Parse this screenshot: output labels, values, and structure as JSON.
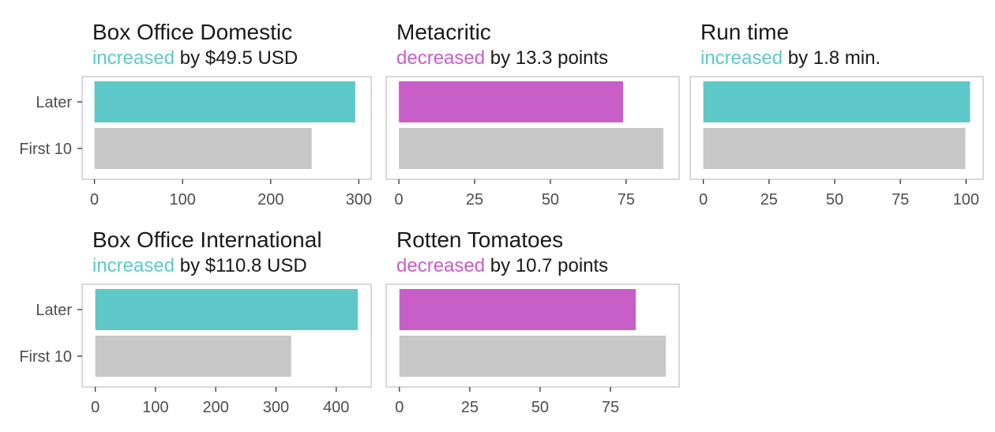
{
  "colors": {
    "increase": "#5EC8C8",
    "decrease": "#C85EC8",
    "baseline": "#C7C7C7",
    "panel_border": "#CCCCCC",
    "text_dark": "#1A1A1A",
    "axis_text": "#4D4D4D"
  },
  "chart_data": [
    {
      "type": "bar",
      "orientation": "horizontal",
      "title": "Box Office Domestic",
      "subtitle_highlight": "increased",
      "subtitle_rest": " by $49.5 USD",
      "direction": "increase",
      "categories": [
        "Later",
        "First 10"
      ],
      "values": [
        296,
        246.5
      ],
      "xlim": [
        -14,
        314
      ],
      "xticks": [
        0,
        100,
        200,
        300
      ],
      "xticklabels": [
        "0",
        "100",
        "200",
        "300"
      ],
      "xlabel": "",
      "ylabel": "",
      "grid": false
    },
    {
      "type": "bar",
      "orientation": "horizontal",
      "title": "Metacritic",
      "subtitle_highlight": "decreased",
      "subtitle_rest": " by 13.3 points",
      "direction": "decrease",
      "categories": [
        "Later",
        "First 10"
      ],
      "values": [
        74,
        87.3
      ],
      "xlim": [
        -4.2,
        92.5
      ],
      "xticks": [
        0,
        25,
        50,
        75
      ],
      "xticklabels": [
        "0",
        "25",
        "50",
        "75"
      ],
      "xlabel": "",
      "ylabel": "",
      "grid": false
    },
    {
      "type": "bar",
      "orientation": "horizontal",
      "title": "Run time",
      "subtitle_highlight": "increased",
      "subtitle_rest": " by 1.8 min.",
      "direction": "increase",
      "categories": [
        "Later",
        "First 10"
      ],
      "values": [
        101.5,
        99.7
      ],
      "xlim": [
        -5,
        106.5
      ],
      "xticks": [
        0,
        25,
        50,
        75,
        100
      ],
      "xticklabels": [
        "0",
        "25",
        "50",
        "75",
        "100"
      ],
      "xlabel": "",
      "ylabel": "",
      "grid": false
    },
    {
      "type": "bar",
      "orientation": "horizontal",
      "title": "Box Office International",
      "subtitle_highlight": "increased",
      "subtitle_rest": " by $110.8 USD",
      "direction": "increase",
      "categories": [
        "Later",
        "First 10"
      ],
      "values": [
        436,
        325.2
      ],
      "xlim": [
        -21.8,
        458
      ],
      "xticks": [
        0,
        100,
        200,
        300,
        400
      ],
      "xticklabels": [
        "0",
        "100",
        "200",
        "300",
        "400"
      ],
      "xlabel": "",
      "ylabel": "",
      "grid": false
    },
    {
      "type": "bar",
      "orientation": "horizontal",
      "title": "Rotten Tomatoes",
      "subtitle_highlight": "decreased",
      "subtitle_rest": " by 10.7 points",
      "direction": "decrease",
      "categories": [
        "Later",
        "First 10"
      ],
      "values": [
        84,
        94.7
      ],
      "xlim": [
        -4.7,
        99.4
      ],
      "xticks": [
        0,
        25,
        50,
        75
      ],
      "xticklabels": [
        "0",
        "25",
        "50",
        "75"
      ],
      "xlabel": "",
      "ylabel": "",
      "grid": false
    }
  ]
}
